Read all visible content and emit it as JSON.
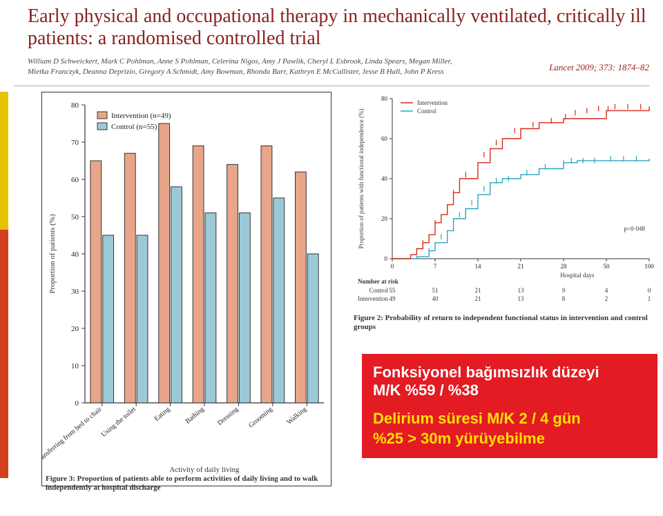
{
  "title": "Early physical and occupational therapy in mechanically ventilated, critically ill patients: a randomised controlled trial",
  "authors": "William D Schweickert, Mark C Pohlman, Anne S Pohlman, Celerina Nigos, Amy J Pawlik, Cheryl L Esbrook, Linda Spears, Megan Miller, Mietka Franczyk, Deanna Deprizio, Gregory A Schmidt, Amy Bowman, Rhonda Barr, Kathryn E McCallister, Jesse B Hall, John P Kress",
  "citation": "Lancet 2009; 373: 1874–82",
  "fig3": {
    "type": "bar",
    "legend": {
      "intervention": "Intervention (n=49)",
      "control": "Control (n=55)",
      "color_intervention": "#e8a58a",
      "color_control": "#9cc9d8",
      "stroke": "#7a4a3b"
    },
    "ylabel": "Proportion of patients (%)",
    "ylim": [
      0,
      80
    ],
    "ytick_step": 10,
    "categories": [
      "Transferring from bed to chair",
      "Using the toilet",
      "Eating",
      "Bathing",
      "Dressing",
      "Grooming",
      "Walking"
    ],
    "series": {
      "intervention": [
        65,
        67,
        75,
        69,
        64,
        69,
        62
      ],
      "control": [
        45,
        45,
        58,
        51,
        51,
        55,
        40
      ]
    },
    "xlabel": "Activity of daily living",
    "bar_stroke": "#333",
    "caption": "Figure 3: Proportion of patients able to perform activities of daily living and to walk independently at hospital discharge"
  },
  "fig2": {
    "type": "survival-step",
    "legend": {
      "intervention": "Intervention",
      "control": "Control"
    },
    "ylabel": "Proportion of patients with functional independence (%)",
    "ylim": [
      0,
      80
    ],
    "ytick_step": 20,
    "xlabel": "Hospital days",
    "xticks": [
      0,
      7,
      14,
      21,
      28,
      50,
      100
    ],
    "pvalue": "p=0·048",
    "color_intervention": "#d9281c",
    "color_control": "#2aa6c0",
    "number_at_risk_label": "Number at risk",
    "number_at_risk": {
      "rows": [
        "Control",
        "Intervention"
      ],
      "values": [
        [
          55,
          51,
          21,
          13,
          9,
          4,
          0
        ],
        [
          49,
          40,
          21,
          13,
          8,
          2,
          1
        ]
      ]
    },
    "step_intervention": [
      [
        0,
        0
      ],
      [
        3,
        2
      ],
      [
        4,
        5
      ],
      [
        5,
        8
      ],
      [
        6,
        12
      ],
      [
        7,
        18
      ],
      [
        8,
        22
      ],
      [
        9,
        27
      ],
      [
        10,
        33
      ],
      [
        11,
        40
      ],
      [
        14,
        48
      ],
      [
        16,
        55
      ],
      [
        18,
        60
      ],
      [
        21,
        65
      ],
      [
        24,
        68
      ],
      [
        28,
        70
      ],
      [
        50,
        74
      ],
      [
        100,
        76
      ]
    ],
    "step_control": [
      [
        0,
        0
      ],
      [
        4,
        1
      ],
      [
        6,
        4
      ],
      [
        7,
        8
      ],
      [
        9,
        14
      ],
      [
        10,
        20
      ],
      [
        12,
        25
      ],
      [
        14,
        32
      ],
      [
        16,
        38
      ],
      [
        18,
        40
      ],
      [
        21,
        42
      ],
      [
        24,
        45
      ],
      [
        28,
        48
      ],
      [
        35,
        49
      ],
      [
        50,
        49
      ],
      [
        100,
        50
      ]
    ],
    "ticks_intervention": [
      [
        5,
        8
      ],
      [
        7,
        18
      ],
      [
        10,
        33
      ],
      [
        12,
        42
      ],
      [
        15,
        52
      ],
      [
        17,
        58
      ],
      [
        20,
        64
      ],
      [
        23,
        67
      ],
      [
        26,
        69
      ],
      [
        29,
        71
      ],
      [
        34,
        73
      ],
      [
        40,
        74
      ],
      [
        46,
        75
      ],
      [
        52,
        75
      ],
      [
        60,
        76
      ],
      [
        75,
        76
      ],
      [
        90,
        76
      ]
    ],
    "ticks_control": [
      [
        6,
        4
      ],
      [
        8,
        11
      ],
      [
        11,
        22
      ],
      [
        13,
        28
      ],
      [
        15,
        35
      ],
      [
        17,
        39
      ],
      [
        19,
        40
      ],
      [
        22,
        43
      ],
      [
        25,
        46
      ],
      [
        28,
        48
      ],
      [
        32,
        49
      ],
      [
        38,
        49
      ],
      [
        44,
        49
      ],
      [
        55,
        50
      ],
      [
        70,
        50
      ],
      [
        85,
        50
      ]
    ],
    "caption": "Figure 2: Probability of return to independent functional status in intervention and control groups"
  },
  "redbox": {
    "line1": "Fonksiyonel bağımsızlık düzeyi",
    "line2": "M/K %59 / %38",
    "line3": "Delirium süresi M/K 2 / 4 gün",
    "line4": "%25 > 30m yürüyebilme"
  },
  "colors": {
    "title": "#8a2020",
    "red_box_bg": "#e31b23",
    "yellow_text": "#ffe000"
  }
}
